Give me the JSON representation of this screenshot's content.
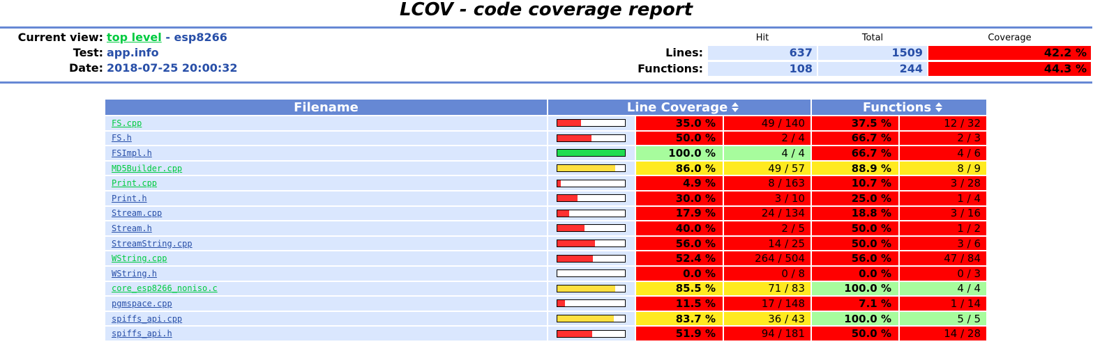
{
  "title": "LCOV - code coverage report",
  "info": {
    "current_view_label": "Current view:",
    "current_view_link": "top level",
    "current_view_sep": " - ",
    "current_view_dir": "esp8266",
    "test_label": "Test:",
    "test_value": "app.info",
    "date_label": "Date:",
    "date_value": "2018-07-25 20:00:32"
  },
  "summary": {
    "hdr_hit": "Hit",
    "hdr_total": "Total",
    "hdr_coverage": "Coverage",
    "lines_label": "Lines:",
    "lines_hit": "637",
    "lines_total": "1509",
    "lines_cov": "42.2 %",
    "functions_label": "Functions:",
    "functions_hit": "108",
    "functions_total": "244",
    "functions_cov": "44.3 %"
  },
  "table": {
    "col_filename": "Filename",
    "col_line_coverage": "Line Coverage",
    "col_functions": "Functions",
    "rows": [
      {
        "name": "FS.cpp",
        "visited": true,
        "line_frac": 0.35,
        "line_pct": "35.0 %",
        "line_cnt": "49 / 140",
        "line_level": "lo",
        "fn_pct": "37.5 %",
        "fn_cnt": "12 / 32",
        "fn_level": "lo"
      },
      {
        "name": "FS.h",
        "visited": false,
        "line_frac": 0.5,
        "line_pct": "50.0 %",
        "line_cnt": "2 / 4",
        "line_level": "lo",
        "fn_pct": "66.7 %",
        "fn_cnt": "2 / 3",
        "fn_level": "lo"
      },
      {
        "name": "FSImpl.h",
        "visited": false,
        "line_frac": 1.0,
        "line_pct": "100.0 %",
        "line_cnt": "4 / 4",
        "line_level": "hi",
        "fn_pct": "66.7 %",
        "fn_cnt": "4 / 6",
        "fn_level": "lo"
      },
      {
        "name": "MD5Builder.cpp",
        "visited": true,
        "line_frac": 0.86,
        "line_pct": "86.0 %",
        "line_cnt": "49 / 57",
        "line_level": "med",
        "fn_pct": "88.9 %",
        "fn_cnt": "8 / 9",
        "fn_level": "med"
      },
      {
        "name": "Print.cpp",
        "visited": true,
        "line_frac": 0.049,
        "line_pct": "4.9 %",
        "line_cnt": "8 / 163",
        "line_level": "lo",
        "fn_pct": "10.7 %",
        "fn_cnt": "3 / 28",
        "fn_level": "lo"
      },
      {
        "name": "Print.h",
        "visited": false,
        "line_frac": 0.3,
        "line_pct": "30.0 %",
        "line_cnt": "3 / 10",
        "line_level": "lo",
        "fn_pct": "25.0 %",
        "fn_cnt": "1 / 4",
        "fn_level": "lo"
      },
      {
        "name": "Stream.cpp",
        "visited": false,
        "line_frac": 0.179,
        "line_pct": "17.9 %",
        "line_cnt": "24 / 134",
        "line_level": "lo",
        "fn_pct": "18.8 %",
        "fn_cnt": "3 / 16",
        "fn_level": "lo"
      },
      {
        "name": "Stream.h",
        "visited": false,
        "line_frac": 0.4,
        "line_pct": "40.0 %",
        "line_cnt": "2 / 5",
        "line_level": "lo",
        "fn_pct": "50.0 %",
        "fn_cnt": "1 / 2",
        "fn_level": "lo"
      },
      {
        "name": "StreamString.cpp",
        "visited": false,
        "line_frac": 0.56,
        "line_pct": "56.0 %",
        "line_cnt": "14 / 25",
        "line_level": "lo",
        "fn_pct": "50.0 %",
        "fn_cnt": "3 / 6",
        "fn_level": "lo"
      },
      {
        "name": "WString.cpp",
        "visited": true,
        "line_frac": 0.524,
        "line_pct": "52.4 %",
        "line_cnt": "264 / 504",
        "line_level": "lo",
        "fn_pct": "56.0 %",
        "fn_cnt": "47 / 84",
        "fn_level": "lo"
      },
      {
        "name": "WString.h",
        "visited": false,
        "line_frac": 0.0,
        "line_pct": "0.0 %",
        "line_cnt": "0 / 8",
        "line_level": "lo",
        "fn_pct": "0.0 %",
        "fn_cnt": "0 / 3",
        "fn_level": "lo"
      },
      {
        "name": "core_esp8266_noniso.c",
        "visited": true,
        "line_frac": 0.855,
        "line_pct": "85.5 %",
        "line_cnt": "71 / 83",
        "line_level": "med",
        "fn_pct": "100.0 %",
        "fn_cnt": "4 / 4",
        "fn_level": "hi"
      },
      {
        "name": "pgmspace.cpp",
        "visited": false,
        "line_frac": 0.115,
        "line_pct": "11.5 %",
        "line_cnt": "17 / 148",
        "line_level": "lo",
        "fn_pct": "7.1 %",
        "fn_cnt": "1 / 14",
        "fn_level": "lo"
      },
      {
        "name": "spiffs_api.cpp",
        "visited": false,
        "line_frac": 0.837,
        "line_pct": "83.7 %",
        "line_cnt": "36 / 43",
        "line_level": "med",
        "fn_pct": "100.0 %",
        "fn_cnt": "5 / 5",
        "fn_level": "hi"
      },
      {
        "name": "spiffs_api.h",
        "visited": false,
        "line_frac": 0.519,
        "line_pct": "51.9 %",
        "line_cnt": "94 / 181",
        "line_level": "lo",
        "fn_pct": "50.0 %",
        "fn_cnt": "14 / 28",
        "fn_level": "lo"
      }
    ]
  },
  "colors": {
    "header_blue": "#6688d4",
    "row_bg": "#dae7fe",
    "text_blue": "#284fa8",
    "link_visited": "#00cb40",
    "lo": "#ff0000",
    "med": "#ffea20",
    "hi": "#a7fc9d",
    "bar_lo": "#ff3030",
    "bar_med": "#ffe040",
    "bar_hi": "#20dd50"
  }
}
